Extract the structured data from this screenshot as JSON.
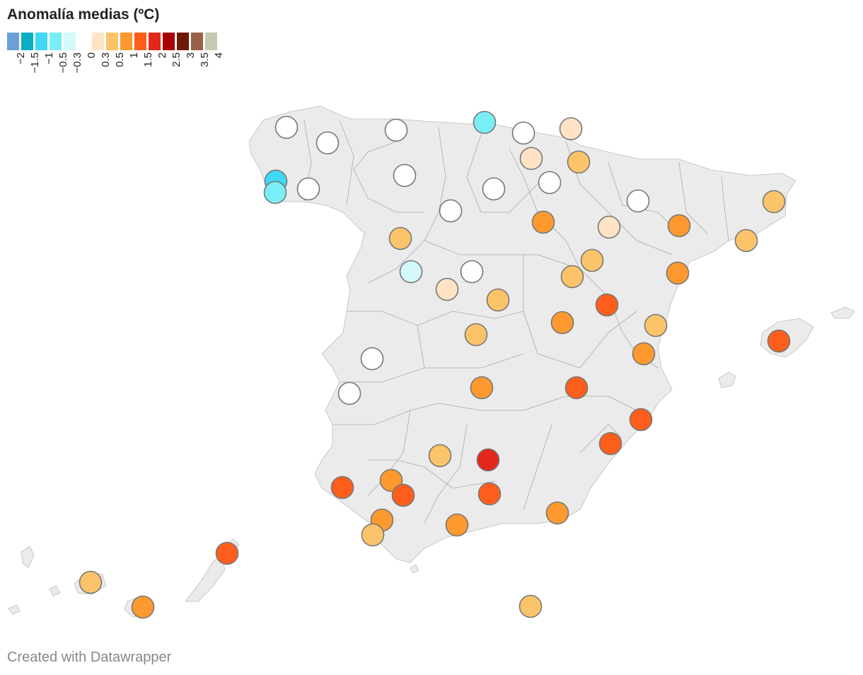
{
  "title": "Anomalía medias (ºC)",
  "footer": "Created with Datawrapper",
  "legend": {
    "bins": [
      {
        "color": "#6a9fd8",
        "label": "-2"
      },
      {
        "color": "#0aaec4",
        "label": "-1.5"
      },
      {
        "color": "#3fd9f3",
        "label": "-1"
      },
      {
        "color": "#7aeef7",
        "label": "-0.5"
      },
      {
        "color": "#d4fafb",
        "label": "-0.3"
      },
      {
        "color": "#ffffff",
        "label": "0"
      },
      {
        "color": "#ffe3c4",
        "label": "0.3"
      },
      {
        "color": "#fcc46a",
        "label": "0.5"
      },
      {
        "color": "#fd992f",
        "label": "1"
      },
      {
        "color": "#fd5e1c",
        "label": "1.5"
      },
      {
        "color": "#e4271b",
        "label": "2"
      },
      {
        "color": "#a80007",
        "label": "2.5"
      },
      {
        "color": "#6e1b06",
        "label": "3"
      },
      {
        "color": "#9a604a",
        "label": "3.5"
      },
      {
        "color": "#c6c8b0",
        "label": "4"
      }
    ]
  },
  "stations": [
    {
      "color": "#ffffff"
    },
    {
      "color": "#ffffff"
    },
    {
      "color": "#ffffff"
    },
    {
      "color": "#7aeef7"
    },
    {
      "color": "#ffffff"
    },
    {
      "color": "#ffe3c4"
    },
    {
      "color": "#ffe3c4"
    },
    {
      "color": "#fcc46a"
    },
    {
      "color": "#3fd9f3"
    },
    {
      "color": "#7aeef7"
    },
    {
      "color": "#ffffff"
    },
    {
      "color": "#ffffff"
    },
    {
      "color": "#ffffff"
    },
    {
      "color": "#ffffff"
    },
    {
      "color": "#ffffff"
    },
    {
      "color": "#ffffff"
    },
    {
      "color": "#fcc46a"
    },
    {
      "color": "#fd992f"
    },
    {
      "color": "#ffe3c4"
    },
    {
      "color": "#fd992f"
    },
    {
      "color": "#fcc46a"
    },
    {
      "color": "#fcc46a"
    },
    {
      "color": "#d4fafb"
    },
    {
      "color": "#ffffff"
    },
    {
      "color": "#ffe3c4"
    },
    {
      "color": "#fcc46a"
    },
    {
      "color": "#fcc46a"
    },
    {
      "color": "#fcc46a"
    },
    {
      "color": "#fd992f"
    },
    {
      "color": "#fd5e1c"
    },
    {
      "color": "#fcc46a"
    },
    {
      "color": "#fcc46a"
    },
    {
      "color": "#fd992f"
    },
    {
      "color": "#fd992f"
    },
    {
      "color": "#ffffff"
    },
    {
      "color": "#ffffff"
    },
    {
      "color": "#fd992f"
    },
    {
      "color": "#fd5e1c"
    },
    {
      "color": "#fd5e1c"
    },
    {
      "color": "#fd5e1c"
    },
    {
      "color": "#fd5e1c"
    },
    {
      "color": "#fcc46a"
    },
    {
      "color": "#e4271b"
    },
    {
      "color": "#fd992f"
    },
    {
      "color": "#fd5e1c"
    },
    {
      "color": "#fd5e1c"
    },
    {
      "color": "#fd5e1c"
    },
    {
      "color": "#fd992f"
    },
    {
      "color": "#fcc46a"
    },
    {
      "color": "#fd992f"
    },
    {
      "color": "#fd992f"
    },
    {
      "color": "#fd5e1c"
    },
    {
      "color": "#fcc46a"
    },
    {
      "color": "#fd992f"
    },
    {
      "color": "#fcc46a"
    }
  ]
}
